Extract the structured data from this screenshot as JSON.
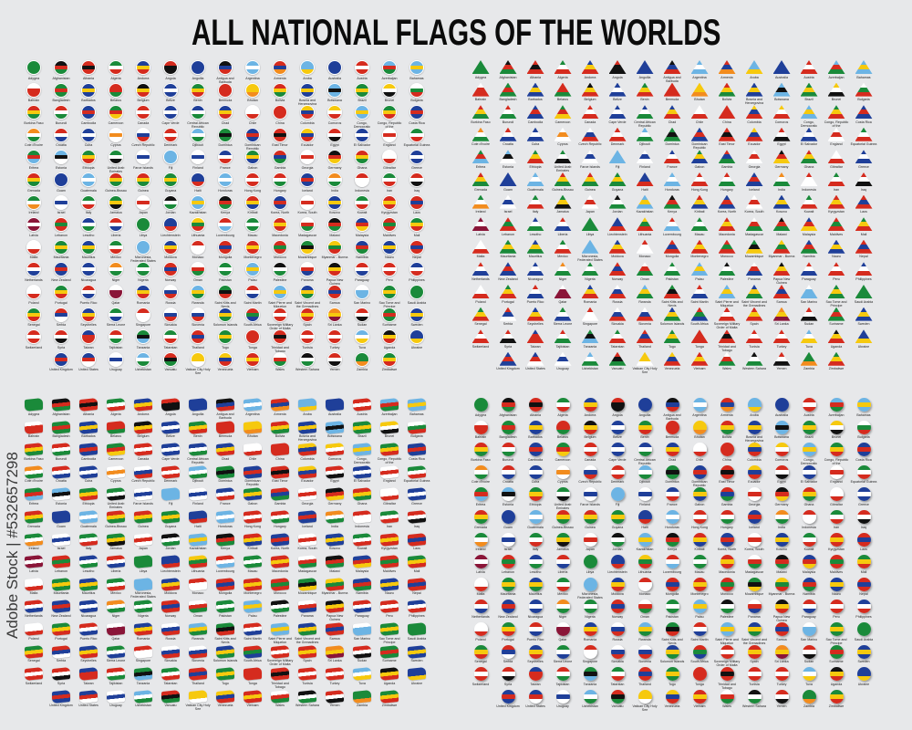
{
  "title": "ALL NATIONAL FLAGS OF THE WORLDS",
  "watermark": "Adobe Stock | #532657298",
  "palette": {
    "r": "#d52b1e",
    "w": "#ffffff",
    "b": "#1f3f99",
    "g": "#1a8a3a",
    "y": "#f6c90e",
    "k": "#111111",
    "o": "#f28c1e",
    "l": "#6cb4e4",
    "m": "#8a1538"
  },
  "panels": [
    {
      "style": "circle-sticker"
    },
    {
      "style": "triangle-pennant"
    },
    {
      "style": "waving-rectangle"
    },
    {
      "style": "round-button"
    }
  ],
  "flags": [
    [
      "Adygea",
      "ggg"
    ],
    [
      "Afghanistan",
      "krg"
    ],
    [
      "Albania",
      "rkr"
    ],
    [
      "Algeria",
      "gwr"
    ],
    [
      "Andorra",
      "byr"
    ],
    [
      "Angola",
      "rkk"
    ],
    [
      "Anguilla",
      "bbb"
    ],
    [
      "Antigua and Barbuda",
      "kbr"
    ],
    [
      "Argentina",
      "lwl"
    ],
    [
      "Armenia",
      "rbo"
    ],
    [
      "Aruba",
      "lly"
    ],
    [
      "Australia",
      "bbb"
    ],
    [
      "Austria",
      "rwr"
    ],
    [
      "Azerbaijan",
      "lrg"
    ],
    [
      "Bahamas",
      "lyl"
    ],
    [
      "Bahrain",
      "wrr"
    ],
    [
      "Bangladesh",
      "grg"
    ],
    [
      "Barbados",
      "byb"
    ],
    [
      "Belarus",
      "rrg"
    ],
    [
      "Belgium",
      "kyr"
    ],
    [
      "Belize",
      "bwb"
    ],
    [
      "Benin",
      "gyr"
    ],
    [
      "Bermuda",
      "rrr"
    ],
    [
      "Bhutan",
      "yyo"
    ],
    [
      "Bolivia",
      "ryg"
    ],
    [
      "Bosnia and Herzegovina",
      "byb"
    ],
    [
      "Botswana",
      "lkl"
    ],
    [
      "Brazil",
      "gyg"
    ],
    [
      "Brunei",
      "ywk"
    ],
    [
      "Bulgaria",
      "wgr"
    ],
    [
      "Burkina Faso",
      "ryg"
    ],
    [
      "Burundi",
      "rwg"
    ],
    [
      "Cambodia",
      "brb"
    ],
    [
      "Cameroon",
      "gry"
    ],
    [
      "Canada",
      "rwr"
    ],
    [
      "Cape Verde",
      "bwb"
    ],
    [
      "Central African Republic",
      "bwg"
    ],
    [
      "Chad",
      "byr"
    ],
    [
      "Chile",
      "wwr"
    ],
    [
      "China",
      "rrr"
    ],
    [
      "Colombia",
      "ybr"
    ],
    [
      "Comoros",
      "ywr"
    ],
    [
      "Congo, Democratic Republic of the",
      "lyl"
    ],
    [
      "Congo, Republic of the",
      "gyr"
    ],
    [
      "Costa Rica",
      "brb"
    ],
    [
      "Cote d'Ivoire",
      "owg"
    ],
    [
      "Croatia",
      "rwb"
    ],
    [
      "Cuba",
      "bwb"
    ],
    [
      "Cyprus",
      "wow"
    ],
    [
      "Czech Republic",
      "wbr"
    ],
    [
      "Denmark",
      "rwr"
    ],
    [
      "Djibouti",
      "lwg"
    ],
    [
      "Dominica",
      "gkg"
    ],
    [
      "Dominican Republic",
      "brb"
    ],
    [
      "East Timor",
      "rkr"
    ],
    [
      "Ecuador",
      "ybr"
    ],
    [
      "Egypt",
      "rwk"
    ],
    [
      "El Salvador",
      "bwb"
    ],
    [
      "England",
      "wrw"
    ],
    [
      "Equatorial Guinea",
      "gwr"
    ],
    [
      "Eritrea",
      "grl"
    ],
    [
      "Estonia",
      "lkw"
    ],
    [
      "Ethiopia",
      "gyr"
    ],
    [
      "United Arab Emirates",
      "gwk"
    ],
    [
      "Faroe Islands",
      "wbw"
    ],
    [
      "Fiji",
      "lll"
    ],
    [
      "Finland",
      "wbw"
    ],
    [
      "France",
      "bwr"
    ],
    [
      "Gabon",
      "gyb"
    ],
    [
      "Gambia",
      "rbg"
    ],
    [
      "Georgia",
      "wrw"
    ],
    [
      "Germany",
      "kry"
    ],
    [
      "Ghana",
      "ryg"
    ],
    [
      "Gibraltar",
      "wwr"
    ],
    [
      "Greece",
      "bwb"
    ],
    [
      "Grenada",
      "ryg"
    ],
    [
      "Guam",
      "bbb"
    ],
    [
      "Guatemala",
      "lwl"
    ],
    [
      "Guinea-Bissau",
      "ryg"
    ],
    [
      "Guinea",
      "ryg"
    ],
    [
      "Guyana",
      "gyg"
    ],
    [
      "Haiti",
      "bbr"
    ],
    [
      "Honduras",
      "lwl"
    ],
    [
      "Hong Kong",
      "rwr"
    ],
    [
      "Hungary",
      "rwg"
    ],
    [
      "Iceland",
      "brb"
    ],
    [
      "India",
      "owg"
    ],
    [
      "Indonesia",
      "rww"
    ],
    [
      "Iran",
      "gwr"
    ],
    [
      "Iraq",
      "rwk"
    ],
    [
      "Ireland",
      "gwo"
    ],
    [
      "Israel",
      "wbw"
    ],
    [
      "Italy",
      "gwr"
    ],
    [
      "Jamaica",
      "gyk"
    ],
    [
      "Japan",
      "wrw"
    ],
    [
      "Jordan",
      "kwg"
    ],
    [
      "Kazakhstan",
      "lyl"
    ],
    [
      "Kenya",
      "krg"
    ],
    [
      "Kiribati",
      "ryb"
    ],
    [
      "Korea, North",
      "brb"
    ],
    [
      "Korea, South",
      "wrw"
    ],
    [
      "Kosovo",
      "byb"
    ],
    [
      "Kuwait",
      "gwr"
    ],
    [
      "Kyrgyzstan",
      "ryr"
    ],
    [
      "Laos",
      "rbr"
    ],
    [
      "Latvia",
      "mwm"
    ],
    [
      "Lebanon",
      "rgr"
    ],
    [
      "Lesotho",
      "bwg"
    ],
    [
      "Liberia",
      "rwb"
    ],
    [
      "Libya",
      "ggg"
    ],
    [
      "Liechtenstein",
      "bbr"
    ],
    [
      "Lithuania",
      "ygr"
    ],
    [
      "Luxembourg",
      "rwl"
    ],
    [
      "Macau",
      "gwg"
    ],
    [
      "Macedonia",
      "ryr"
    ],
    [
      "Madagascar",
      "wrg"
    ],
    [
      "Malawi",
      "krg"
    ],
    [
      "Malaysia",
      "bry"
    ],
    [
      "Maldives",
      "rgr"
    ],
    [
      "Mali",
      "gyr"
    ],
    [
      "Malta",
      "wwr"
    ],
    [
      "Mauritania",
      "gyg"
    ],
    [
      "Mauritius",
      "byg"
    ],
    [
      "Mexico",
      "gwr"
    ],
    [
      "Micronesia, Federated States",
      "lll"
    ],
    [
      "Moldova",
      "byr"
    ],
    [
      "Monaco",
      "rww"
    ],
    [
      "Mongolia",
      "rbr"
    ],
    [
      "Montenegro",
      "ryr"
    ],
    [
      "Morocco",
      "rgr"
    ],
    [
      "Mozambique",
      "gky"
    ],
    [
      "Myanmar - Burma",
      "ygr"
    ],
    [
      "Namibia",
      "brg"
    ],
    [
      "Nauru",
      "byb"
    ],
    [
      "Nepal",
      "rbr"
    ],
    [
      "Netherlands",
      "rwb"
    ],
    [
      "New Zealand",
      "brb"
    ],
    [
      "Nicaragua",
      "bwb"
    ],
    [
      "Niger",
      "owg"
    ],
    [
      "Nigeria",
      "gwg"
    ],
    [
      "Norway",
      "rbr"
    ],
    [
      "Oman",
      "wrg"
    ],
    [
      "Pakistan",
      "gwg"
    ],
    [
      "Palau",
      "lyl"
    ],
    [
      "Palestine",
      "kwg"
    ],
    [
      "Panama",
      "wrb"
    ],
    [
      "Papua New Guinea",
      "kyr"
    ],
    [
      "Paraguay",
      "rwb"
    ],
    [
      "Peru",
      "rwr"
    ],
    [
      "Philippines",
      "bwr"
    ],
    [
      "Poland",
      "wwr"
    ],
    [
      "Portugal",
      "gyr"
    ],
    [
      "Puerto Rico",
      "rwb"
    ],
    [
      "Qatar",
      "wmm"
    ],
    [
      "Romania",
      "byr"
    ],
    [
      "Russia",
      "wbr"
    ],
    [
      "Rwanda",
      "lyg"
    ],
    [
      "Saint Kitts and Nevis",
      "gkr"
    ],
    [
      "Saint Martin",
      "rwb"
    ],
    [
      "Saint Pierre and Miquelon",
      "lyl"
    ],
    [
      "Saint Vincent and the Grenadines",
      "byg"
    ],
    [
      "Samoa",
      "rbr"
    ],
    [
      "San Marino",
      "wll"
    ],
    [
      "Sao Tome and Principe",
      "gyg"
    ],
    [
      "Saudi Arabia",
      "ggg"
    ],
    [
      "Senegal",
      "gyr"
    ],
    [
      "Serbia",
      "rbw"
    ],
    [
      "Seychelles",
      "byr"
    ],
    [
      "Sierra Leone",
      "gwb"
    ],
    [
      "Singapore",
      "rww"
    ],
    [
      "Slovakia",
      "wbr"
    ],
    [
      "Slovenia",
      "wbr"
    ],
    [
      "Solomon Islands",
      "byg"
    ],
    [
      "South Africa",
      "rgb"
    ],
    [
      "Sovereign Military Order of Malta",
      "rwr"
    ],
    [
      "Spain",
      "ryr"
    ],
    [
      "Sri Lanka",
      "oym"
    ],
    [
      "Sudan",
      "rwk"
    ],
    [
      "Suriname",
      "grg"
    ],
    [
      "Sweden",
      "byb"
    ],
    [
      "Switzerland",
      "rwr"
    ],
    [
      "Syria",
      "rwk"
    ],
    [
      "Taiwan",
      "brr"
    ],
    [
      "Tajikistan",
      "rwg"
    ],
    [
      "Tanzania",
      "gkl"
    ],
    [
      "Tatarstan",
      "gwr"
    ],
    [
      "Thailand",
      "rbr"
    ],
    [
      "Togo",
      "gyg"
    ],
    [
      "Tonga",
      "rrr"
    ],
    [
      "Trinidad and Tobago",
      "rkr"
    ],
    [
      "Tunisia",
      "rwr"
    ],
    [
      "Turkey",
      "rwr"
    ],
    [
      "Tuva",
      "lwy"
    ],
    [
      "Uganda",
      "kyr"
    ],
    [
      "Ukraine",
      "bby"
    ],
    [
      "United Kingdom",
      "brb"
    ],
    [
      "United States",
      "brw"
    ],
    [
      "Uruguay",
      "wbw"
    ],
    [
      "Uzbekistan",
      "lwg"
    ],
    [
      "Vanuatu",
      "rkg"
    ],
    [
      "Vatican City Holy See",
      "yyw"
    ],
    [
      "Venezuela",
      "ybr"
    ],
    [
      "Vietnam",
      "ryr"
    ],
    [
      "Wales",
      "wrg"
    ],
    [
      "Western Sahara",
      "kwg"
    ],
    [
      "Yemen",
      "rwk"
    ],
    [
      "Zambia",
      "ggo"
    ],
    [
      "Zimbabwe",
      "gyr"
    ]
  ]
}
